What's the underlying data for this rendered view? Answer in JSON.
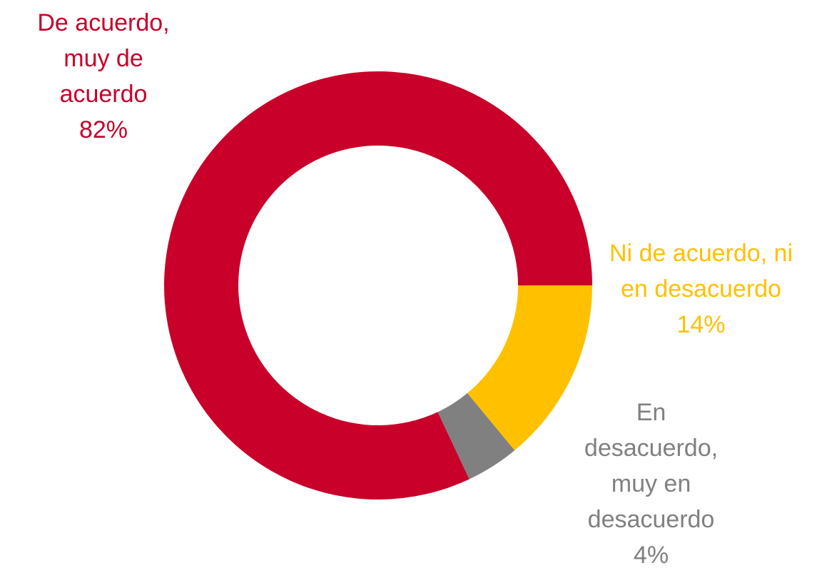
{
  "chart_data": {
    "type": "donut",
    "categories": [
      "De acuerdo, muy de acuerdo",
      "Ni de acuerdo, ni en desacuerdo",
      "En desacuerdo, muy en desacuerdo"
    ],
    "values": [
      82,
      14,
      4
    ],
    "value_labels": [
      "82%",
      "14%",
      "4%"
    ],
    "colors": [
      "#c8002a",
      "#ffc000",
      "#808080"
    ]
  }
}
